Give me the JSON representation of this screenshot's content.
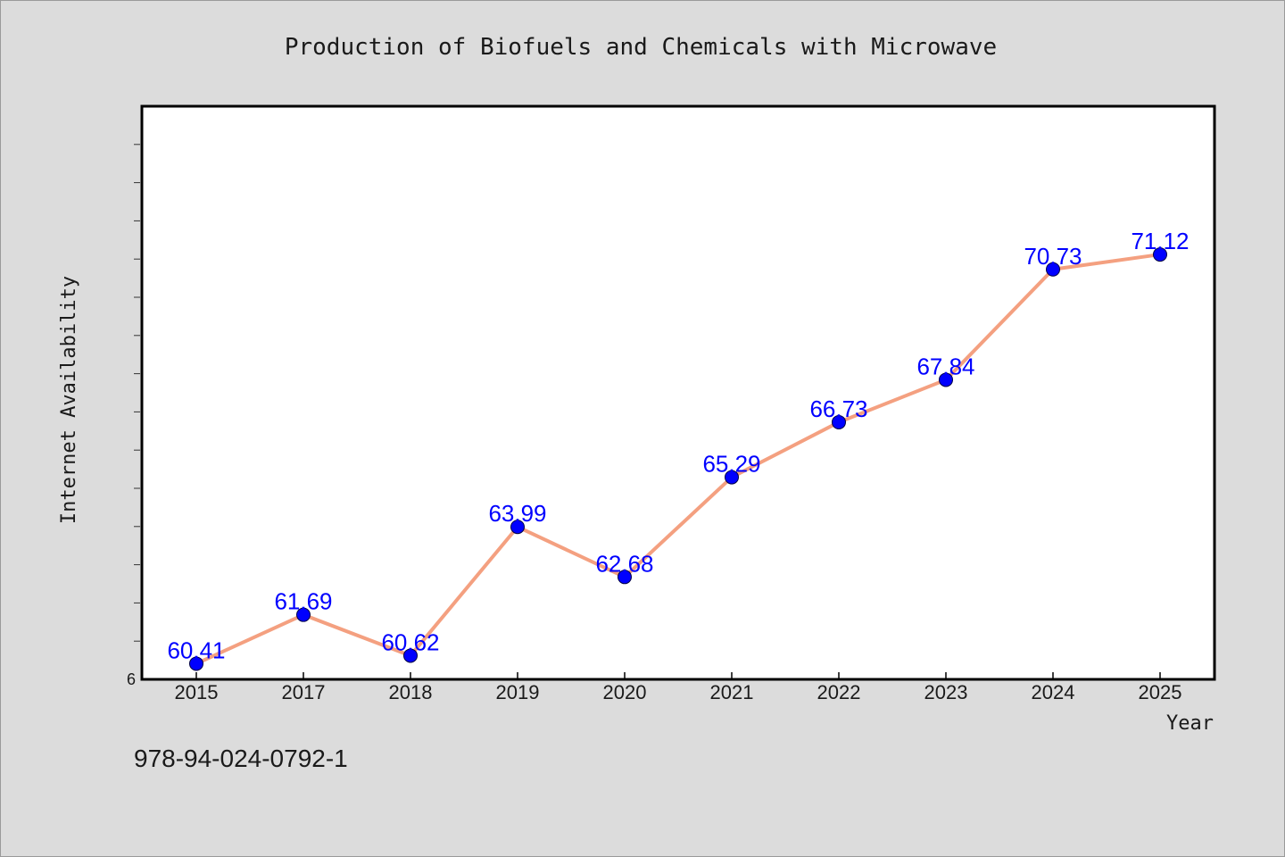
{
  "chart_data": {
    "type": "line",
    "title": "Production of Biofuels and Chemicals with Microwave",
    "xlabel": "Year",
    "ylabel": "Internet Availability",
    "categories": [
      "2015",
      "2017",
      "2018",
      "2019",
      "2020",
      "2021",
      "2022",
      "2023",
      "2024",
      "2025"
    ],
    "series": [
      {
        "values": [
          60.41,
          61.69,
          60.62,
          63.99,
          62.68,
          65.29,
          66.73,
          67.84,
          70.73,
          71.12
        ],
        "line_color": "#f4a080",
        "marker_color": "#0000ff",
        "label_color": "#0000ff"
      }
    ],
    "y_tick_labels": [
      {
        "value": 60.0,
        "label": "6"
      }
    ],
    "ylim": [
      60.0,
      75.0
    ],
    "y_minor_ticks": [
      61,
      62,
      63,
      64,
      65,
      66,
      67,
      68,
      69,
      70,
      71,
      72,
      73,
      74
    ],
    "grid": false,
    "legend": "none",
    "plot_background": "#ffffff",
    "page_background": "#dcdcdc"
  },
  "footer": {
    "code": "978-94-024-0792-1"
  }
}
